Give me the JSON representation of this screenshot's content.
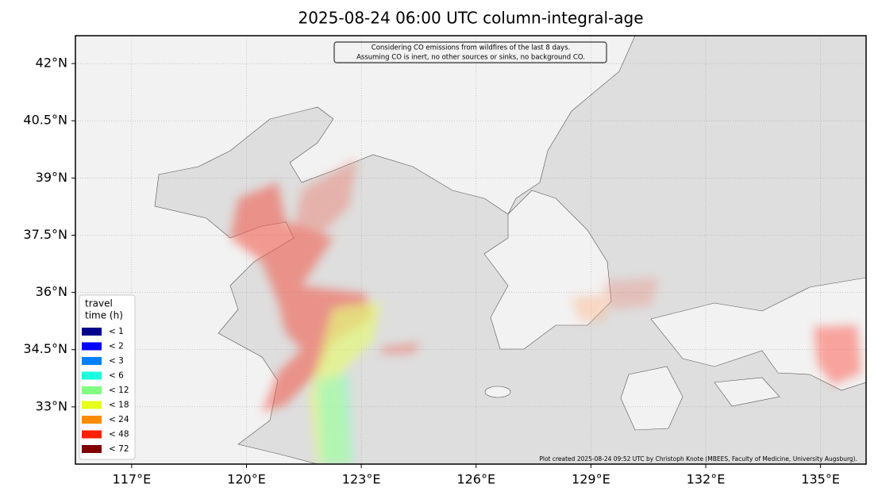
{
  "map": {
    "title": "2025-08-24 06:00 UTC column-integral-age",
    "annotation": [
      "Considering CO emissions from wildfires of the last 8 days.",
      "Assuming CO is inert, no other sources or sinks, no background CO."
    ],
    "xlim": [
      115.53,
      136.19
    ],
    "ylim": [
      31.5,
      42.73
    ],
    "xticks": [
      {
        "value": 117,
        "label": "117°E"
      },
      {
        "value": 120,
        "label": "120°E"
      },
      {
        "value": 123,
        "label": "123°E"
      },
      {
        "value": 126,
        "label": "126°E"
      },
      {
        "value": 129,
        "label": "129°E"
      },
      {
        "value": 132,
        "label": "132°E"
      },
      {
        "value": 135,
        "label": "135°E"
      }
    ],
    "yticks": [
      {
        "value": 33,
        "label": "33°N"
      },
      {
        "value": 34.5,
        "label": "34.5°N"
      },
      {
        "value": 36,
        "label": "36°N"
      },
      {
        "value": 37.5,
        "label": "37.5°N"
      },
      {
        "value": 39,
        "label": "39°N"
      },
      {
        "value": 40.5,
        "label": "40.5°N"
      },
      {
        "value": 42,
        "label": "42°N"
      }
    ],
    "legend": {
      "title": [
        "travel",
        "time (h)"
      ],
      "items": [
        {
          "label": "<  1",
          "color": "#00008c"
        },
        {
          "label": "<  2",
          "color": "#0000ff"
        },
        {
          "label": "<  3",
          "color": "#0080ff"
        },
        {
          "label": "<  6",
          "color": "#1affe0"
        },
        {
          "label": "< 12",
          "color": "#80ff80"
        },
        {
          "label": "< 18",
          "color": "#e6ff1a"
        },
        {
          "label": "< 24",
          "color": "#ff8c00"
        },
        {
          "label": "< 48",
          "color": "#ff2000"
        },
        {
          "label": "< 72",
          "color": "#800000"
        }
      ]
    },
    "credit": "Plot created 2025-08-24 09:52 UTC by Christoph Knote (MBEES, Faculty of Medicine, University Augsburg)."
  }
}
